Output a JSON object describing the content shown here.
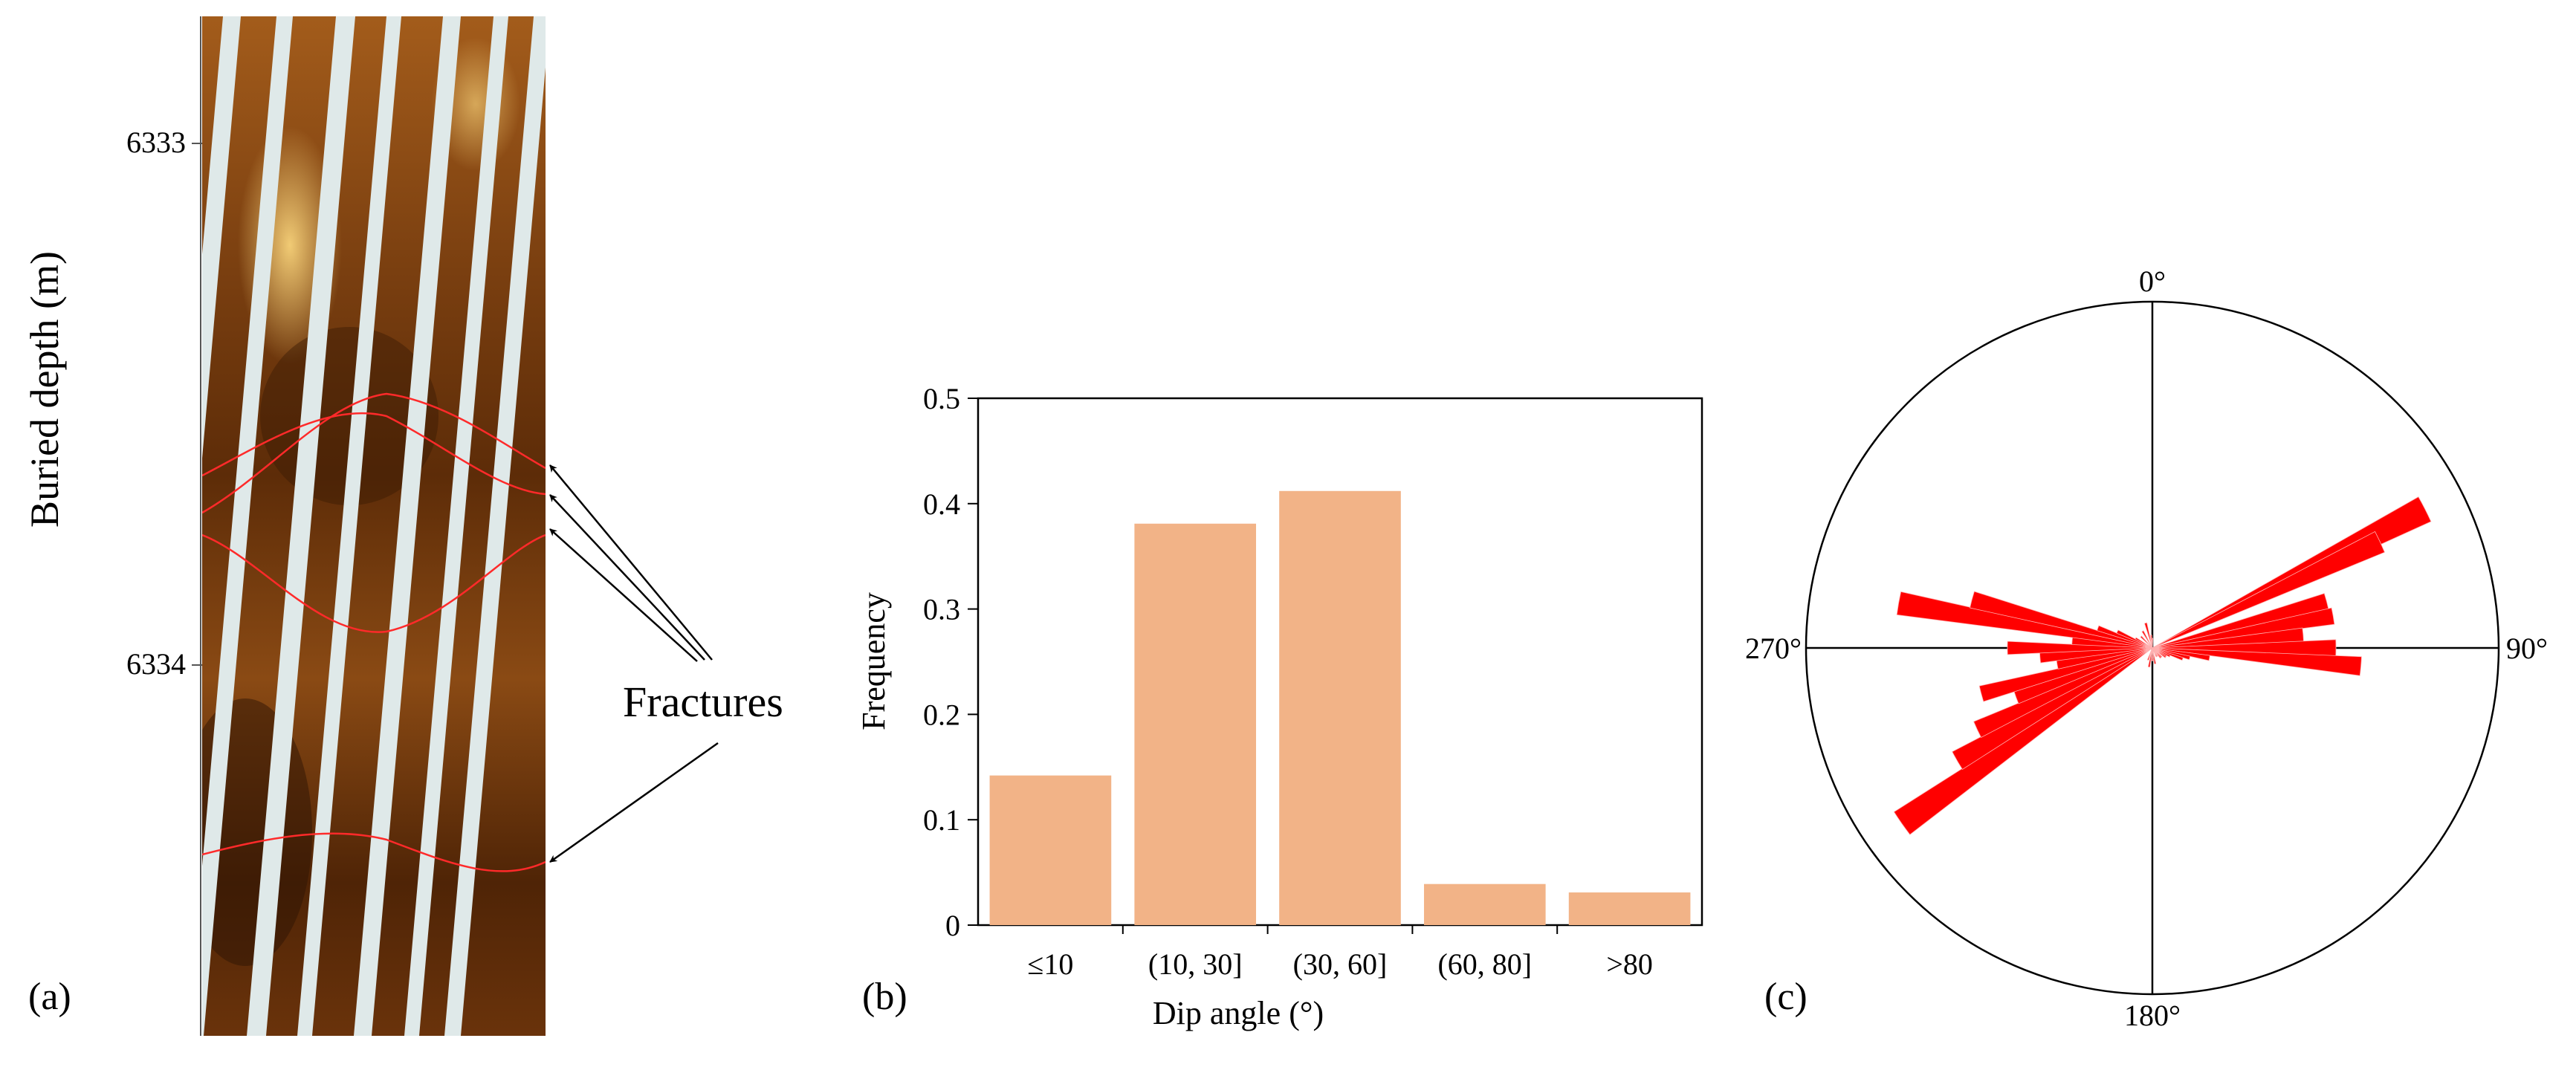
{
  "panel_a": {
    "label": "(a)",
    "ylabel": "Buried depth (m)",
    "depth_ticks": [
      "6333",
      "6334"
    ],
    "annotation": "Fractures"
  },
  "panel_b": {
    "label": "(b)"
  },
  "panel_c": {
    "label": "(c)",
    "direction_labels": [
      "0°",
      "90°",
      "180°",
      "270°"
    ]
  },
  "colors": {
    "bar": "#f2b387",
    "rose": "#ff0000",
    "fracture_trace": "#ff2a2a",
    "image_dark": "#5a2a08",
    "image_mid": "#a8601c",
    "image_light": "#e0a040",
    "pad_gap": "#dfe9e9"
  },
  "chart_data": [
    {
      "type": "bar",
      "categories": [
        "≤10",
        "(10, 30]",
        "(30, 60]",
        "(60, 80]",
        ">80"
      ],
      "values": [
        0.142,
        0.381,
        0.412,
        0.039,
        0.031
      ],
      "xlabel": "Dip angle (°)",
      "ylabel": "Frequency",
      "ylim": [
        0,
        0.5
      ],
      "yticks": [
        "0",
        "0.1",
        "0.2",
        "0.3",
        "0.4",
        "0.5"
      ],
      "grid": false
    },
    {
      "type": "rose",
      "directions_deg": [
        63,
        65,
        75,
        80,
        85,
        90,
        95,
        100,
        105,
        110,
        115,
        120,
        125,
        135,
        140,
        150,
        155,
        170,
        180,
        190,
        200,
        235,
        240,
        245,
        250,
        255,
        260,
        265,
        270,
        275,
        280,
        285,
        290,
        295,
        300,
        315,
        330,
        345,
        355,
        0
      ],
      "values": [
        0.95,
        0.78,
        0.56,
        0.57,
        0.47,
        0.57,
        0.65,
        0.18,
        0.12,
        0.1,
        0.06,
        0.05,
        0.05,
        0.04,
        0.04,
        0.03,
        0.03,
        0.05,
        0.04,
        0.06,
        0.04,
        0.95,
        0.7,
        0.6,
        0.45,
        0.55,
        0.3,
        0.35,
        0.45,
        0.25,
        0.8,
        0.58,
        0.18,
        0.12,
        0.06,
        0.05,
        0.06,
        0.08,
        0.04,
        0.03
      ],
      "angle_labels": [
        "0°",
        "90°",
        "180°",
        "270°"
      ],
      "direction": "clockwise from north"
    }
  ]
}
